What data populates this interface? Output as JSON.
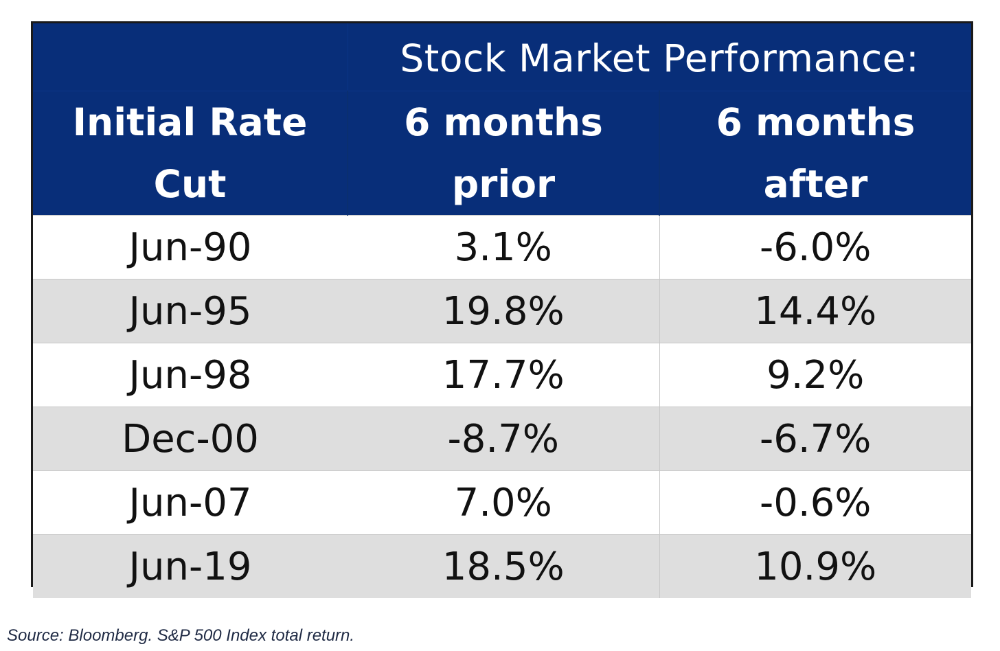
{
  "chart_data": {
    "type": "table",
    "title": "Stock Market Performance:",
    "columns": [
      [
        "Initial Rate",
        "Cut"
      ],
      [
        "6 months",
        "prior"
      ],
      [
        "6 months",
        "after"
      ]
    ],
    "rows": [
      {
        "date": "Jun-90",
        "prior": "3.1%",
        "after": "-6.0%"
      },
      {
        "date": "Jun-95",
        "prior": "19.8%",
        "after": "14.4%"
      },
      {
        "date": "Jun-98",
        "prior": "17.7%",
        "after": "9.2%"
      },
      {
        "date": "Dec-00",
        "prior": "-8.7%",
        "after": "-6.7%"
      },
      {
        "date": "Jun-07",
        "prior": "7.0%",
        "after": "-0.6%"
      },
      {
        "date": "Jun-19",
        "prior": "18.5%",
        "after": "10.9%"
      }
    ],
    "colors": {
      "header_bg": "#082e79",
      "header_text": "#ffffff",
      "row_alt_bg": "#dedede"
    }
  },
  "source": "Source: Bloomberg. S&P 500 Index total return."
}
